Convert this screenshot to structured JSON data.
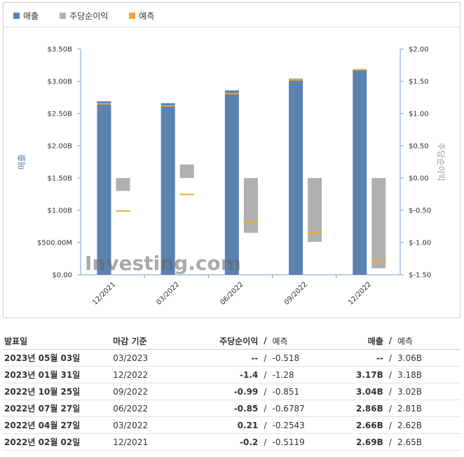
{
  "legend": {
    "revenue": "매출",
    "eps": "주당순이익",
    "forecast": "예측"
  },
  "colors": {
    "revenue": "#5b82b0",
    "eps": "#b0b0b0",
    "forecast": "#f0a830",
    "positive": "#2b7fd0",
    "negative": "#cc1122"
  },
  "chart_data": {
    "type": "bar",
    "categories": [
      "12/2021",
      "03/2022",
      "06/2022",
      "09/2022",
      "12/2022"
    ],
    "left_axis": {
      "label": "매출",
      "range": [
        0,
        3.5
      ],
      "ticks": [
        0,
        0.5,
        1.0,
        1.5,
        2.0,
        2.5,
        3.0,
        3.5
      ],
      "tick_labels": [
        "$0.00",
        "$500.00M",
        "$1.00B",
        "$1.50B",
        "$2.00B",
        "$2.50B",
        "$3.00B",
        "$3.50B"
      ]
    },
    "right_axis": {
      "label": "주당순이익",
      "range": [
        -1.5,
        2.0
      ],
      "ticks": [
        -1.5,
        -1.0,
        -0.5,
        0,
        0.5,
        1.0,
        1.5,
        2.0
      ],
      "tick_labels": [
        "$-1.50",
        "$-1.00",
        "$-0.50",
        "$0.00",
        "$0.50",
        "$1.00",
        "$1.50",
        "$2.00"
      ]
    },
    "series": [
      {
        "name": "매출",
        "axis": "left",
        "values": [
          2.69,
          2.66,
          2.86,
          3.04,
          3.17
        ]
      },
      {
        "name": "매출 예측",
        "axis": "left",
        "values": [
          2.65,
          2.62,
          2.81,
          3.02,
          3.18
        ]
      },
      {
        "name": "주당순이익",
        "axis": "right",
        "values": [
          -0.2,
          0.21,
          -0.85,
          -0.99,
          -1.4
        ]
      },
      {
        "name": "주당순이익 예측",
        "axis": "right",
        "values": [
          -0.5119,
          -0.2543,
          -0.6787,
          -0.851,
          -1.28
        ]
      }
    ],
    "watermark": "Investing.com"
  },
  "table": {
    "headers": {
      "date": "발표일",
      "period": "마감 기준",
      "eps": "주당순이익",
      "sep": "/",
      "eps_forecast": "예측",
      "revenue": "매출",
      "revenue_forecast": "예측"
    },
    "rows": [
      {
        "date": "2023년 05월 03일",
        "period": "03/2023",
        "eps": "--",
        "eps_forecast": "-0.518",
        "revenue": "--",
        "revenue_forecast": "3.06B",
        "eps_class": "neutral",
        "rev_class": "neutral"
      },
      {
        "date": "2023년 01월 31일",
        "period": "12/2022",
        "eps": "-1.4",
        "eps_forecast": "-1.28",
        "revenue": "3.17B",
        "revenue_forecast": "3.18B",
        "eps_class": "pos",
        "rev_class": "pos"
      },
      {
        "date": "2022년 10월 25일",
        "period": "09/2022",
        "eps": "-0.99",
        "eps_forecast": "-0.851",
        "revenue": "3.04B",
        "revenue_forecast": "3.02B",
        "eps_class": "pos",
        "rev_class": "neg"
      },
      {
        "date": "2022년 07월 27일",
        "period": "06/2022",
        "eps": "-0.85",
        "eps_forecast": "-0.6787",
        "revenue": "2.86B",
        "revenue_forecast": "2.81B",
        "eps_class": "pos",
        "rev_class": "neg"
      },
      {
        "date": "2022년 04월 27일",
        "period": "03/2022",
        "eps": "0.21",
        "eps_forecast": "-0.2543",
        "revenue": "2.66B",
        "revenue_forecast": "2.62B",
        "eps_class": "neg",
        "rev_class": "neg"
      },
      {
        "date": "2022년 02월 02일",
        "period": "12/2021",
        "eps": "-0.2",
        "eps_forecast": "-0.5119",
        "revenue": "2.69B",
        "revenue_forecast": "2.65B",
        "eps_class": "neg",
        "rev_class": "neg"
      }
    ]
  }
}
